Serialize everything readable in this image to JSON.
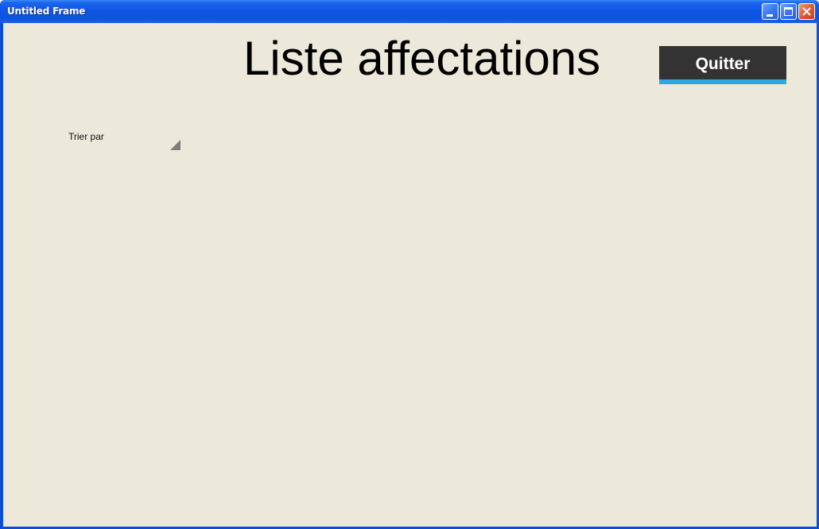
{
  "window": {
    "title": "Untitled Frame"
  },
  "header": {
    "title": "Liste affectations",
    "quit_label": "Quitter"
  },
  "sort": {
    "label": "Trier par",
    "selected_value": ""
  },
  "colors": {
    "background": "#ede9da",
    "button_bg": "#333333",
    "button_accent": "#2aa8df",
    "titlebar": "#0d52df"
  },
  "icons": {
    "minimize": "minimize-icon",
    "maximize": "maximize-icon",
    "close": "close-icon",
    "dropdown": "dropdown-triangle-icon"
  }
}
